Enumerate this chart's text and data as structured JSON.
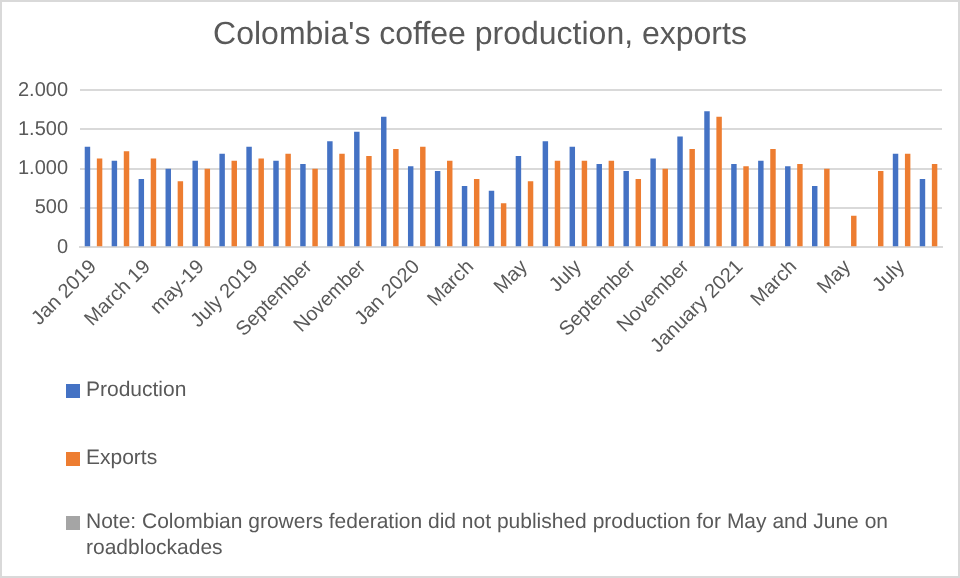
{
  "chart_data": {
    "type": "bar",
    "title": "Colombia's coffee production, exports",
    "categories": [
      "Jan 2019",
      null,
      "March 19",
      null,
      "may-19",
      null,
      "July 2019",
      null,
      "September",
      null,
      "November",
      null,
      "Jan 2020",
      null,
      "March",
      null,
      "May",
      null,
      "July",
      null,
      "September",
      null,
      "November",
      null,
      "January 2021",
      null,
      "March",
      null,
      "May",
      null,
      "July",
      null
    ],
    "series": [
      {
        "name": "Production",
        "color": "#4472c4",
        "values": [
          1280,
          1100,
          870,
          1000,
          1100,
          1190,
          1280,
          1100,
          1060,
          1350,
          1470,
          1660,
          1030,
          970,
          780,
          720,
          1160,
          1350,
          1280,
          1060,
          970,
          1130,
          1410,
          1730,
          1060,
          1100,
          1030,
          780,
          null,
          null,
          1190,
          870
        ]
      },
      {
        "name": "Exports",
        "color": "#ed7d31",
        "values": [
          1130,
          1220,
          1130,
          840,
          1000,
          1100,
          1130,
          1190,
          1000,
          1190,
          1160,
          1250,
          1280,
          1100,
          870,
          560,
          840,
          1100,
          1100,
          1100,
          870,
          1000,
          1250,
          1660,
          1030,
          1250,
          1060,
          1000,
          400,
          970,
          1190,
          1060
        ]
      }
    ],
    "ylim": [
      0,
      2000
    ],
    "yticks": [
      0,
      500,
      {
        "value": 1000,
        "label": "1.000"
      },
      {
        "value": 1500,
        "label": "1.500"
      },
      {
        "value": 2000,
        "label": "2.000"
      }
    ],
    "grid": "y",
    "legend": "bottom left",
    "annotations": [
      "Note: Colombian growers federation did not published production for May and June on roadblockades"
    ]
  }
}
